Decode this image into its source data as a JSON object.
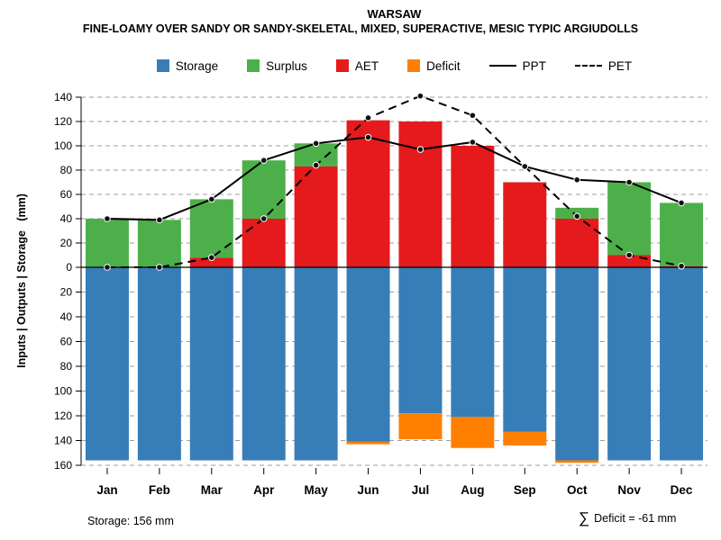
{
  "header": {
    "title": "WARSAW",
    "subtitle": "FINE-LOAMY OVER SANDY OR SANDY-SKELETAL, MIXED, SUPERACTIVE, MESIC TYPIC ARGIUDOLLS"
  },
  "legend": {
    "items": [
      {
        "label": "Storage",
        "kind": "swatch"
      },
      {
        "label": "Surplus",
        "kind": "swatch"
      },
      {
        "label": "AET",
        "kind": "swatch"
      },
      {
        "label": "Deficit",
        "kind": "swatch"
      },
      {
        "label": "PPT",
        "kind": "line-solid"
      },
      {
        "label": "PET",
        "kind": "line-dashed"
      }
    ]
  },
  "annotations": {
    "storage_note": "Storage: 156 mm",
    "deficit_sigma": "∑",
    "deficit_note": "Deficit = -61 mm"
  },
  "chart_data": {
    "type": "bar",
    "title": "WARSAW",
    "subtitle": "FINE-LOAMY OVER SANDY OR SANDY-SKELETAL, MIXED, SUPERACTIVE, MESIC TYPIC ARGIUDOLLS",
    "ylabel": "Inputs | Outputs | Storage   (mm)",
    "categories": [
      "Jan",
      "Feb",
      "Mar",
      "Apr",
      "May",
      "Jun",
      "Jul",
      "Aug",
      "Sep",
      "Oct",
      "Nov",
      "Dec"
    ],
    "series": [
      {
        "name": "Storage",
        "type": "bar-down",
        "values": [
          156,
          156,
          156,
          156,
          156,
          141,
          118,
          121,
          133,
          156,
          156,
          156
        ]
      },
      {
        "name": "Surplus",
        "type": "bar-up",
        "values": [
          40,
          39,
          48,
          48,
          19,
          0,
          0,
          0,
          0,
          9,
          60,
          52
        ]
      },
      {
        "name": "AET",
        "type": "bar-up",
        "values": [
          0,
          0,
          8,
          40,
          83,
          121,
          120,
          100,
          70,
          40,
          10,
          1
        ]
      },
      {
        "name": "Deficit",
        "type": "bar-down",
        "values": [
          0,
          0,
          0,
          0,
          0,
          2,
          21,
          25,
          11,
          2,
          0,
          0
        ]
      },
      {
        "name": "PPT",
        "type": "line-solid",
        "values": [
          40,
          39,
          56,
          88,
          102,
          107,
          97,
          103,
          83,
          72,
          70,
          53
        ]
      },
      {
        "name": "PET",
        "type": "line-dashed",
        "values": [
          0,
          0,
          8,
          40,
          84,
          123,
          141,
          125,
          83,
          42,
          10,
          1
        ]
      }
    ],
    "colors": {
      "Storage": "#377EB8",
      "Surplus": "#4DAF4A",
      "AET": "#E41A1C",
      "Deficit": "#FF7F00",
      "PPT": "#000000",
      "PET": "#000000"
    },
    "upper_axis": {
      "ticks": [
        0,
        20,
        40,
        60,
        80,
        100,
        120,
        140
      ],
      "max": 150
    },
    "lower_axis": {
      "ticks": [
        20,
        40,
        60,
        80,
        100,
        120,
        140,
        160
      ],
      "max": 163
    },
    "grid": true,
    "legend_position": "top",
    "total_storage_mm": 156,
    "total_deficit_mm": -61
  }
}
